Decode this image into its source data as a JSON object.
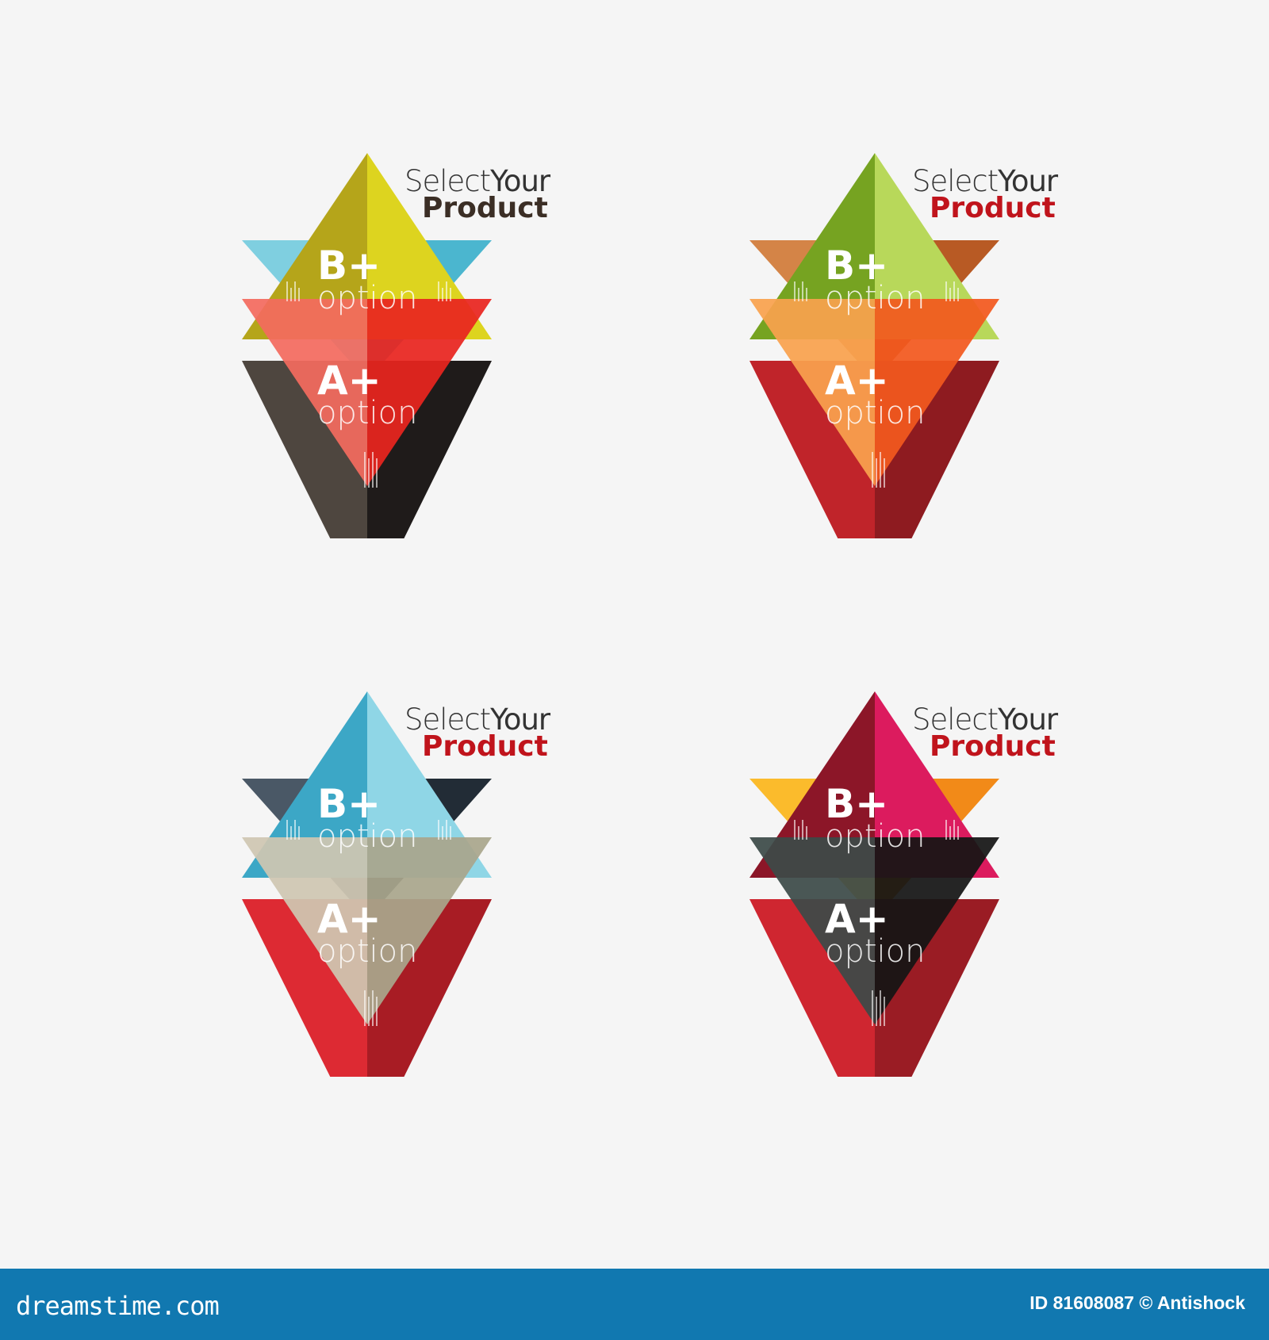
{
  "panels": [
    {
      "title_light": "Select",
      "title_mid": "Your",
      "title_bold": "Product",
      "product_color": "#3b2e25",
      "b_grade": "B+",
      "b_option": "option",
      "a_grade": "A+",
      "a_option": "option",
      "colors": {
        "top": [
          "#b5a51a",
          "#ddd41f"
        ],
        "back": [
          "#7fcfe0",
          "#4bb6cf"
        ],
        "front": [
          "#f36a5f",
          "#e8251f"
        ],
        "bottom": [
          "#4e463f",
          "#1f1b1a"
        ]
      }
    },
    {
      "title_light": "Select",
      "title_mid": "Your",
      "title_bold": "Product",
      "product_color": "#c0141c",
      "b_grade": "B+",
      "b_option": "option",
      "a_grade": "A+",
      "a_option": "option",
      "colors": {
        "top": [
          "#76a321",
          "#b8d85a"
        ],
        "back": [
          "#d48447",
          "#b85a24"
        ],
        "front": [
          "#f9a14e",
          "#f2581e"
        ],
        "bottom": [
          "#c0242a",
          "#8e1b20"
        ]
      }
    },
    {
      "title_light": "Select",
      "title_mid": "Your",
      "title_bold": "Product",
      "product_color": "#c0141c",
      "b_grade": "B+",
      "b_option": "option",
      "a_grade": "A+",
      "a_option": "option",
      "colors": {
        "top": [
          "#3ca7c6",
          "#8fd6e6"
        ],
        "back": [
          "#4a5866",
          "#222c36"
        ],
        "front": [
          "#cfc6b2",
          "#a9a68c"
        ],
        "bottom": [
          "#dd2a33",
          "#a81c24"
        ]
      }
    },
    {
      "title_light": "Select",
      "title_mid": "Your",
      "title_bold": "Product",
      "product_color": "#c0141c",
      "b_grade": "B+",
      "b_option": "option",
      "a_grade": "A+",
      "a_option": "option",
      "colors": {
        "top": [
          "#8c1628",
          "#dc1b5e"
        ],
        "back": [
          "#fbbb2c",
          "#f28a18"
        ],
        "front": [
          "#3c4a48",
          "#141414"
        ],
        "bottom": [
          "#cf2630",
          "#9a1c24"
        ]
      }
    }
  ],
  "footer": {
    "logo": "dreamstime.com",
    "credit": "ID 81608087 © Antishock",
    "background": "#1178b0"
  }
}
